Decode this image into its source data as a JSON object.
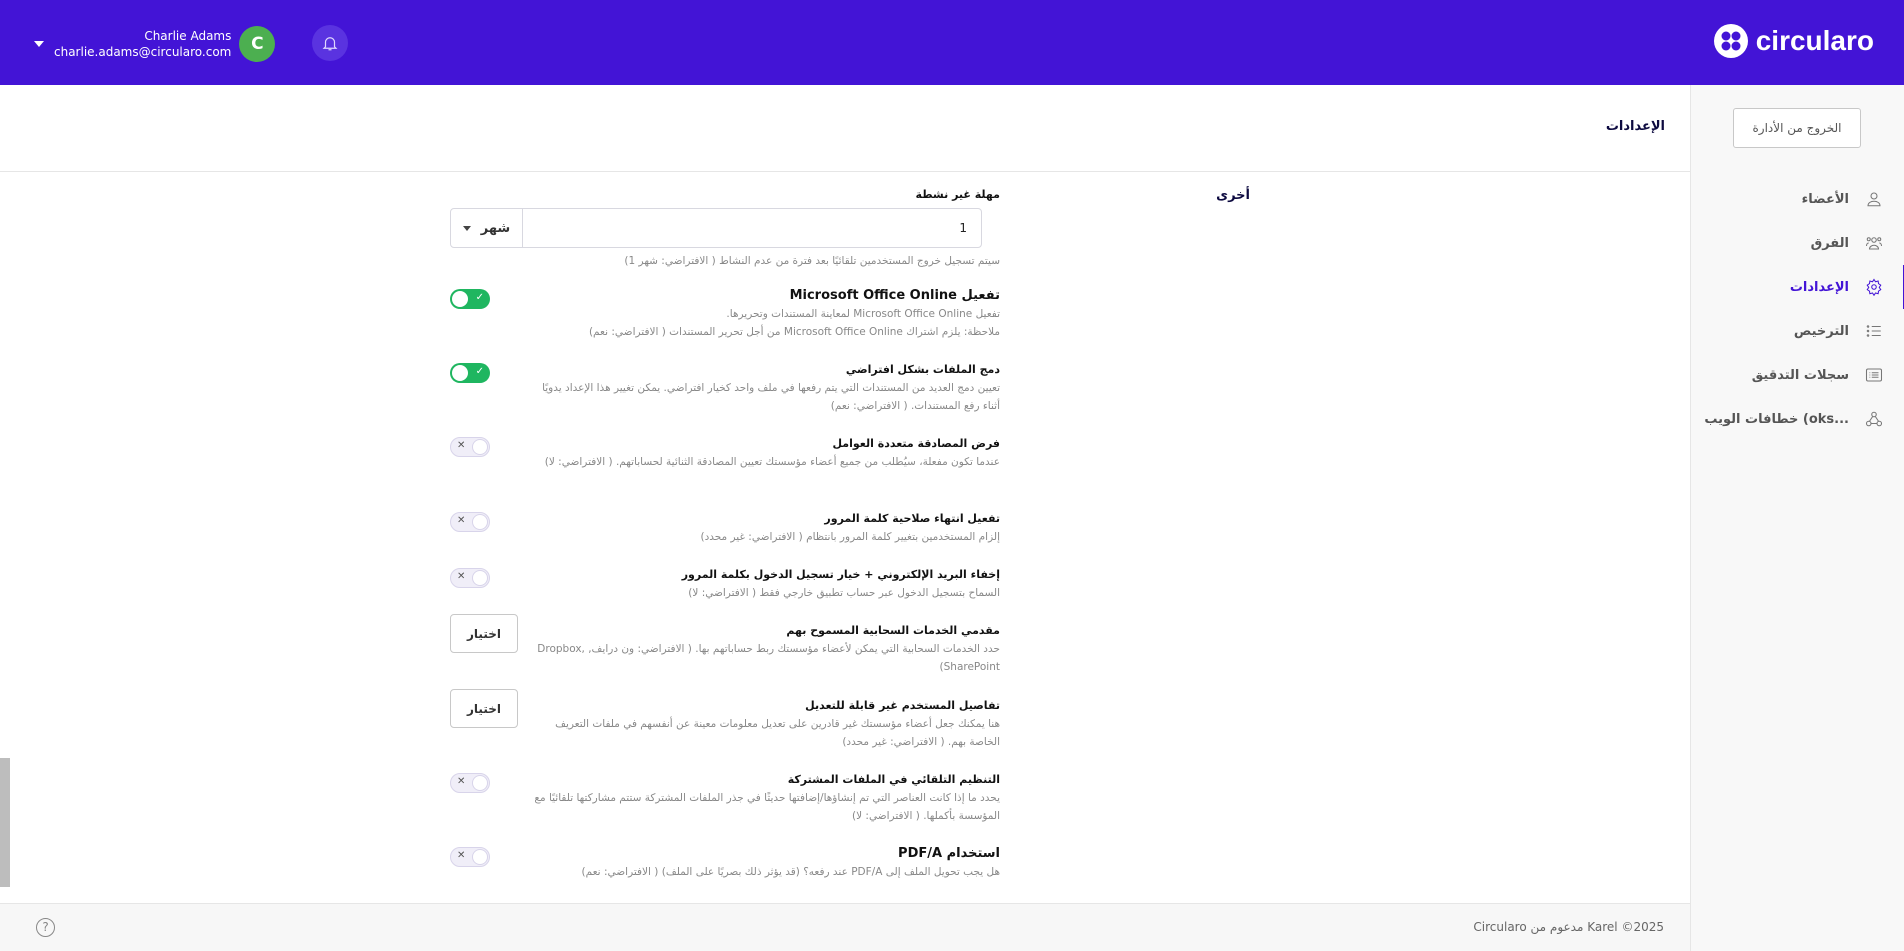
{
  "brand": {
    "name": "circularo",
    "color": "#4314d6"
  },
  "user": {
    "name": "Charlie Adams",
    "email": "charlie.adams@circularo.com",
    "initial": "C",
    "avatar_color": "#4caf50"
  },
  "header": {
    "title": "الإعدادات",
    "exit_button": "الخروج من الأدارة"
  },
  "sidebar": {
    "items": [
      {
        "label": "الأعضاء",
        "icon": "user-icon",
        "active": false
      },
      {
        "label": "الفرق",
        "icon": "users-icon",
        "active": false
      },
      {
        "label": "الإعدادات",
        "icon": "gear-icon",
        "active": true
      },
      {
        "label": "الترخيص",
        "icon": "list-icon",
        "active": false
      },
      {
        "label": "سجلات التدقيق",
        "icon": "log-icon",
        "active": false
      },
      {
        "label": "خطافات الويب (oks...",
        "icon": "webhook-icon",
        "active": false
      }
    ]
  },
  "section": "أخرى",
  "settings": {
    "inactivity": {
      "label": "مهلة غير نشطة",
      "value": "1",
      "unit": "شهر",
      "hint": "سيتم تسجيل خروج المستخدمين تلقائيًا بعد فترة من عدم النشاط  ( الافتراضي: شهر 1)"
    },
    "items": [
      {
        "label": "تفعيل Microsoft Office Online",
        "desc": "تفعيل Microsoft Office Online لمعاينة المستندات وتحريرها.",
        "desc2": "ملاحظة: يلزم اشتراك Microsoft Office Online من أجل تحرير المستندات  ( الافتراضي: نعم)",
        "control": "toggle",
        "on": true
      },
      {
        "label": "دمج الملفات بشكل افتراضي",
        "desc": "تعيين دمج العديد من المستندات التي يتم رفعها في ملف واحد كخيار افتراضي. يمكن تغيير هذا الإعداد يدويًا أثناء رفع المستندات.  ( الافتراضي: نعم)",
        "control": "toggle",
        "on": true
      },
      {
        "label": "فرض المصادقة متعددة العوامل",
        "desc": "عندما تكون مفعلة، سيُطلب من جميع أعضاء مؤسستك تعيين المصادقة الثنائية لحساباتهم.  ( الافتراضي: لا)",
        "control": "toggle",
        "on": false
      },
      {
        "label": "تفعيل انتهاء صلاحية كلمة المرور",
        "desc": "إلزام المستخدمين بتغيير كلمة المرور بانتظام  ( الافتراضي: غير محدد)",
        "control": "toggle",
        "on": false
      },
      {
        "label": "إخفاء البريد الإلكتروني + خيار تسجيل الدخول بكلمة المرور",
        "desc": "السماح بتسجيل الدخول عبر حساب تطبيق خارجي فقط  ( الافتراضي: لا)",
        "control": "toggle",
        "on": false
      },
      {
        "label": "مقدمي الخدمات السحابية المسموح بهم",
        "desc": "حدد الخدمات السحابية التي يمكن لأعضاء مؤسستك ربط حساباتهم بها.  ( الافتراضي: ون درايف, Dropbox, SharePoint)",
        "control": "button",
        "button": "اختيار"
      },
      {
        "label": "تفاصيل المستخدم غير قابلة للتعديل",
        "desc": "هنا يمكنك جعل أعضاء مؤسستك غير قادرين على تعديل معلومات معينة عن أنفسهم في ملفات التعريف الخاصة بهم.  ( الافتراضي: غير محدد)",
        "control": "button",
        "button": "اختيار"
      },
      {
        "label": "التنظيم التلقائي في الملفات المشتركة",
        "desc": "يحدد ما إذا كانت العناصر التي تم إنشاؤها/إضافتها حديثًا في جذر الملفات المشتركة ستتم مشاركتها تلقائيًا مع المؤسسة بأكملها.  ( الافتراضي: لا)",
        "control": "toggle",
        "on": false
      },
      {
        "label": "استخدام PDF/A",
        "desc": "هل يجب تحويل الملف إلى PDF/A عند رفعه؟ (قد يؤثر ذلك بصريًا على الملف)  ( الافتراضي: نعم)",
        "control": "toggle",
        "on": false
      }
    ]
  },
  "footer": {
    "copyright": "Circularo مدعوم من Karel ©2025",
    "help": "?"
  }
}
